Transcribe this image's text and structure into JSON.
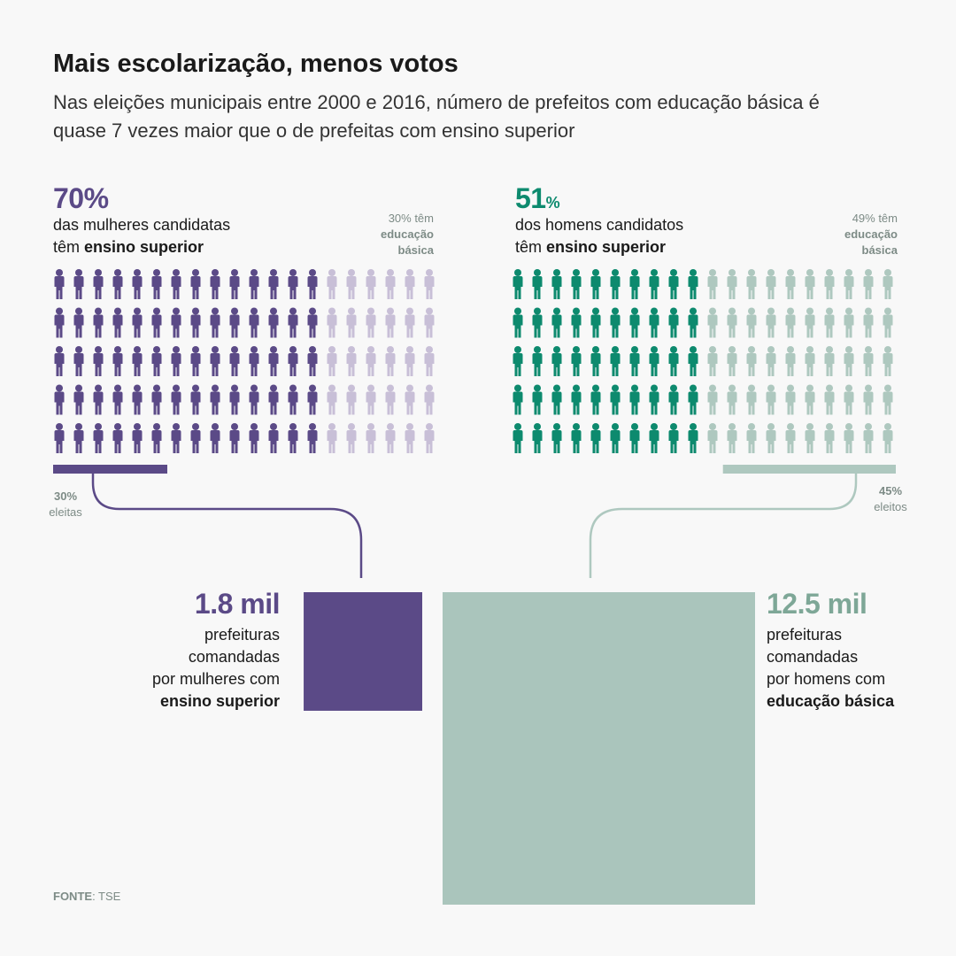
{
  "title": "Mais escolarização, menos votos",
  "subtitle": "Nas eleições municipais entre 2000 e 2016, número de prefeitos com educação básica é quase 7 vezes maior que o de prefeitas com ensino superior",
  "colors": {
    "women_dark": "#5b4a87",
    "women_light": "#c8bfd7",
    "men_dark": "#0d8a6e",
    "men_light": "#aec8bf",
    "square_men": "#aac5bc",
    "men_text": "#7ea797",
    "muted": "#7d8b86"
  },
  "chart_data": [
    {
      "type": "pictogram",
      "group": "women",
      "icon": "person-icon",
      "rows": 5,
      "cols": 20,
      "highlight_percent": 70,
      "big_label": "70%",
      "desc_line1": "das mulheres candidatas",
      "desc_line2_prefix": "têm ",
      "desc_line2_bold": "ensino superior",
      "other_line1": "30% têm",
      "other_line2": "educação",
      "other_line3": "básica",
      "elected_percent": 30,
      "elected_pct_label": "30%",
      "elected_label": "eleitas"
    },
    {
      "type": "pictogram",
      "group": "men",
      "icon": "person-icon",
      "rows": 5,
      "cols": 20,
      "highlight_percent": 51,
      "big_label": "51",
      "big_label_suffix": "%",
      "desc_line1": "dos homens candidatos",
      "desc_line2_prefix": "têm ",
      "desc_line2_bold": "ensino superior",
      "other_line1": "49% têm",
      "other_line2": "educação",
      "other_line3": "básica",
      "elected_percent": 45,
      "elected_pct_label": "45%",
      "elected_label": "eleitos"
    },
    {
      "type": "proportional-area",
      "items": [
        {
          "name": "women",
          "value": 1.8,
          "value_label": "1.8 mil",
          "lines": [
            "prefeituras",
            "comandadas",
            "por mulheres com"
          ],
          "bold_line": "ensino superior"
        },
        {
          "name": "men",
          "value": 12.5,
          "value_label": "12.5 mil",
          "lines": [
            "prefeituras",
            "comandadas",
            "por homens com"
          ],
          "bold_line": "educação básica"
        }
      ]
    }
  ],
  "source": {
    "label": "FONTE",
    "value": ": TSE"
  }
}
